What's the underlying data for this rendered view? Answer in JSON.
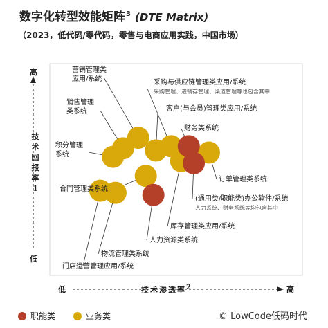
{
  "header": {
    "title": "数字化转型效能矩阵",
    "title_sup": "3",
    "title_suffix": "(DTE Matrix)",
    "subtitle": "（2023，低代码/零代码，零售与电商应用实践，中国市场）"
  },
  "axes": {
    "y_label_lines": [
      "技",
      "术",
      "回",
      "报",
      "率",
      "1"
    ],
    "y_high": "高",
    "y_low": "低",
    "x_label": "技术渗透率",
    "x_label_sup": "2",
    "x_low": "低",
    "x_high": "高"
  },
  "legend": {
    "functional": "职能类",
    "business": "业务类",
    "functional_color": "#b5402a",
    "business_color": "#d9a80b"
  },
  "credit": "© LowCode低码时代",
  "chart_data": {
    "type": "scatter",
    "title": "数字化转型效能矩阵",
    "xlabel": "技术渗透率",
    "ylabel": "技术回报率",
    "xlim": [
      0,
      100
    ],
    "ylim": [
      0,
      100
    ],
    "series": [
      {
        "name": "职能类",
        "color": "#b5402a",
        "points": [
          {
            "label": "财务类系统",
            "x": 55,
            "y": 61
          },
          {
            "label": "(通用类/职能类)办公软件/系统",
            "x": 57,
            "y": 53
          },
          {
            "label": "人力资源类系统",
            "x": 41,
            "y": 38
          }
        ]
      },
      {
        "name": "业务类",
        "color": "#d9a80b",
        "points": [
          {
            "label": "营销管理类应用/系统",
            "x": 35,
            "y": 65
          },
          {
            "label": "采购与供应链管理类应用/系统",
            "x": 48,
            "y": 61
          },
          {
            "label": "客户(与会员)管理类应用/系统",
            "x": 42,
            "y": 59
          },
          {
            "label": "销售管理类系统",
            "x": 29,
            "y": 60
          },
          {
            "label": "积分管理系统",
            "x": 25,
            "y": 56
          },
          {
            "label": "订单管理类系统",
            "x": 63,
            "y": 58
          },
          {
            "label": "合同管理类系统",
            "x": 38,
            "y": 47
          },
          {
            "label": "库存管理类应用/系统",
            "x": 52,
            "y": 54
          },
          {
            "label": "物流管理类系统",
            "x": 26,
            "y": 39
          },
          {
            "label": "门店运营管理应用/系统",
            "x": 20,
            "y": 40
          }
        ]
      }
    ],
    "annotations": [
      {
        "for": "采购与供应链管理类应用/系统",
        "text": "采购管理、进销存管理、渠道管理等也包含其中"
      },
      {
        "for": "(通用类/职能类)办公软件/系统",
        "text": "人力系统、财务系统等均包含其中"
      }
    ]
  }
}
